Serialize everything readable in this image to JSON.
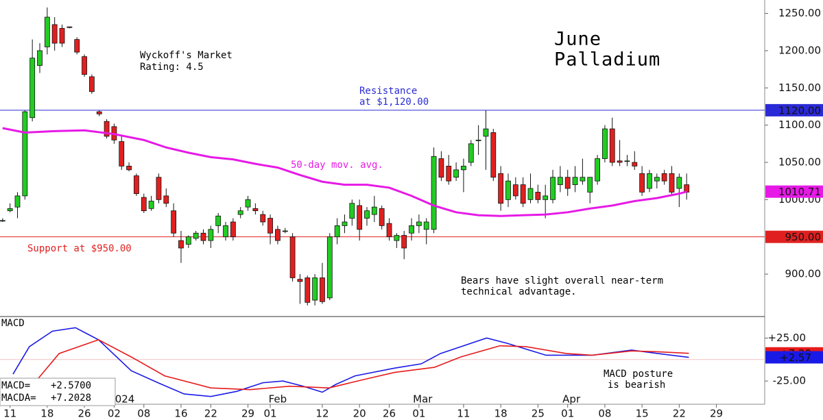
{
  "chart_data": {
    "type": "candlestick",
    "title": [
      "June",
      "Palladium"
    ],
    "rating": [
      "Wyckoff's Market",
      "Rating: 4.5"
    ],
    "resistance_note": [
      "Resistance",
      "at $1,120.00"
    ],
    "support_note": "Support at $950.00",
    "ma_note": "50-day mov. avg.",
    "outlook_note": [
      "Bears have slight overall near-term",
      "technical advantage."
    ],
    "macd_title": "MACD",
    "macd_note": [
      "MACD posture",
      "is bearish"
    ],
    "up_color": "#22cc22",
    "down_color": "#e02020",
    "ohlc": [
      [
        972,
        975,
        970,
        972
      ],
      [
        985,
        995,
        983,
        988
      ],
      [
        990,
        1010,
        975,
        1005
      ],
      [
        1005,
        1120,
        1000,
        1118
      ],
      [
        1110,
        1215,
        1105,
        1190
      ],
      [
        1180,
        1210,
        1170,
        1200
      ],
      [
        1205,
        1258,
        1195,
        1245
      ],
      [
        1235,
        1245,
        1200,
        1210
      ],
      [
        1230,
        1235,
        1205,
        1210
      ],
      [
        1232,
        1232,
        1230,
        1231
      ],
      [
        1215,
        1218,
        1195,
        1198
      ],
      [
        1192,
        1195,
        1165,
        1168
      ],
      [
        1165,
        1168,
        1142,
        1145
      ],
      [
        1118,
        1120,
        1112,
        1115
      ],
      [
        1105,
        1108,
        1082,
        1085
      ],
      [
        1098,
        1102,
        1075,
        1080
      ],
      [
        1078,
        1085,
        1040,
        1045
      ],
      [
        1045,
        1050,
        1038,
        1040
      ],
      [
        1032,
        1035,
        1005,
        1008
      ],
      [
        1003,
        1008,
        982,
        985
      ],
      [
        988,
        1005,
        985,
        998
      ],
      [
        1030,
        1035,
        995,
        1000
      ],
      [
        1005,
        1015,
        990,
        995
      ],
      [
        985,
        995,
        950,
        955
      ],
      [
        945,
        958,
        915,
        935
      ],
      [
        940,
        952,
        935,
        950
      ],
      [
        948,
        958,
        945,
        955
      ],
      [
        955,
        960,
        940,
        945
      ],
      [
        945,
        965,
        935,
        960
      ],
      [
        965,
        982,
        955,
        978
      ],
      [
        950,
        970,
        945,
        965
      ],
      [
        970,
        975,
        945,
        950
      ],
      [
        980,
        990,
        975,
        985
      ],
      [
        990,
        1005,
        985,
        1000
      ],
      [
        988,
        995,
        980,
        985
      ],
      [
        980,
        985,
        965,
        970
      ],
      [
        975,
        980,
        940,
        955
      ],
      [
        960,
        965,
        940,
        945
      ],
      [
        958,
        962,
        955,
        958
      ],
      [
        950,
        955,
        890,
        895
      ],
      [
        893,
        900,
        860,
        890
      ],
      [
        895,
        898,
        858,
        862
      ],
      [
        865,
        900,
        858,
        895
      ],
      [
        895,
        915,
        860,
        863
      ],
      [
        868,
        955,
        865,
        950
      ],
      [
        950,
        975,
        940,
        965
      ],
      [
        965,
        980,
        955,
        970
      ],
      [
        975,
        1000,
        965,
        995
      ],
      [
        992,
        1000,
        945,
        960
      ],
      [
        975,
        990,
        965,
        985
      ],
      [
        980,
        1005,
        970,
        990
      ],
      [
        988,
        992,
        960,
        965
      ],
      [
        968,
        975,
        945,
        950
      ],
      [
        945,
        955,
        935,
        952
      ],
      [
        952,
        958,
        920,
        935
      ],
      [
        955,
        975,
        945,
        965
      ],
      [
        965,
        980,
        955,
        970
      ],
      [
        960,
        975,
        940,
        970
      ],
      [
        960,
        1070,
        955,
        1058
      ],
      [
        1055,
        1065,
        1025,
        1030
      ],
      [
        1045,
        1060,
        1020,
        1025
      ],
      [
        1030,
        1050,
        1025,
        1040
      ],
      [
        1040,
        1055,
        1010,
        1045
      ],
      [
        1050,
        1080,
        1045,
        1075
      ],
      [
        1080,
        1100,
        1060,
        1080
      ],
      [
        1085,
        1120,
        1040,
        1095
      ],
      [
        1090,
        1095,
        1025,
        1030
      ],
      [
        1035,
        1045,
        985,
        995
      ],
      [
        1000,
        1035,
        990,
        1025
      ],
      [
        1020,
        1030,
        1000,
        1005
      ],
      [
        1020,
        1030,
        990,
        995
      ],
      [
        1000,
        1035,
        995,
        1015
      ],
      [
        1010,
        1020,
        995,
        1000
      ],
      [
        1000,
        1020,
        975,
        1005
      ],
      [
        1000,
        1040,
        995,
        1030
      ],
      [
        1020,
        1045,
        1010,
        1030
      ],
      [
        1030,
        1040,
        1005,
        1015
      ],
      [
        1020,
        1045,
        1010,
        1030
      ],
      [
        1025,
        1055,
        1020,
        1030
      ],
      [
        1010,
        1030,
        995,
        1030
      ],
      [
        1025,
        1060,
        1020,
        1055
      ],
      [
        1055,
        1100,
        1050,
        1095
      ],
      [
        1095,
        1110,
        1045,
        1050
      ],
      [
        1052,
        1080,
        1045,
        1050
      ],
      [
        1052,
        1060,
        1045,
        1052
      ],
      [
        1050,
        1065,
        1040,
        1045
      ],
      [
        1035,
        1045,
        1005,
        1010
      ],
      [
        1015,
        1040,
        1010,
        1035
      ],
      [
        1025,
        1035,
        1015,
        1030
      ],
      [
        1035,
        1040,
        1020,
        1025
      ],
      [
        1035,
        1045,
        1005,
        1010
      ],
      [
        1015,
        1035,
        990,
        1030
      ],
      [
        1020,
        1035,
        1000,
        1010
      ]
    ],
    "ma": {
      "color": "#e619e6",
      "x": [
        0,
        3,
        7,
        11,
        15,
        19,
        22,
        25,
        28,
        31,
        34,
        37,
        40,
        43,
        46,
        49,
        52,
        55,
        58,
        61,
        64,
        67,
        70,
        73,
        76,
        79,
        82,
        85,
        88,
        91,
        92
      ],
      "values": [
        1096,
        1090,
        1092,
        1093,
        1088,
        1080,
        1070,
        1063,
        1057,
        1054,
        1048,
        1043,
        1033,
        1024,
        1020,
        1020,
        1016,
        1005,
        992,
        983,
        979,
        978,
        979,
        980,
        983,
        988,
        992,
        998,
        1002,
        1008,
        1010.71
      ],
      "end_label": "1010.71"
    },
    "levels": [
      {
        "value": 1120,
        "label": "1120.00",
        "color": "#2a2ad6"
      },
      {
        "value": 950,
        "label": "950.00",
        "color": "#e02020"
      }
    ],
    "ylim": [
      843,
      1268
    ],
    "yticks": [
      {
        "value": 900,
        "label": "900.00"
      },
      {
        "value": 1000,
        "label": "1000.00"
      },
      {
        "value": 1050,
        "label": "1050.00"
      },
      {
        "value": 1100,
        "label": "1100.00"
      },
      {
        "value": 1150,
        "label": "1150.00"
      },
      {
        "value": 1200,
        "label": "1200.00"
      },
      {
        "value": 1250,
        "label": "1250.00"
      }
    ],
    "xlim": [
      -0.35,
      102.5
    ],
    "xticks": [
      {
        "value": 1,
        "label": "11"
      },
      {
        "value": 6,
        "label": "18"
      },
      {
        "value": 11,
        "label": "26"
      },
      {
        "value": 15,
        "label": "02"
      },
      {
        "value": 19,
        "label": "08"
      },
      {
        "value": 24,
        "label": "16"
      },
      {
        "value": 28,
        "label": "22"
      },
      {
        "value": 33,
        "label": "29"
      },
      {
        "value": 36,
        "label": "01"
      },
      {
        "value": 43,
        "label": "12"
      },
      {
        "value": 48,
        "label": "20"
      },
      {
        "value": 52,
        "label": "26"
      },
      {
        "value": 56,
        "label": "01"
      },
      {
        "value": 62,
        "label": "11"
      },
      {
        "value": 67,
        "label": "18"
      },
      {
        "value": 72,
        "label": "25"
      },
      {
        "value": 76,
        "label": "01"
      },
      {
        "value": 81,
        "label": "08"
      },
      {
        "value": 86,
        "label": "15"
      },
      {
        "value": 91,
        "label": "22"
      },
      {
        "value": 96,
        "label": "29"
      }
    ],
    "month_ticks": [
      {
        "value": 16,
        "label": "2024"
      },
      {
        "value": 37,
        "label": "Feb"
      },
      {
        "value": 56.5,
        "label": "Mar"
      },
      {
        "value": 76.5,
        "label": "Apr"
      }
    ],
    "macd": {
      "ylim": [
        -52,
        50
      ],
      "yticks": [
        {
          "value": 25,
          "label": "+25.00"
        },
        {
          "value": -25,
          "label": "-25.00"
        }
      ],
      "series": [
        {
          "name": "MACD=",
          "color": "#1a1ae6",
          "readout": "+2.5700",
          "end_label": "+2.57",
          "x": [
            1.4,
            3.6,
            6.7,
            9.8,
            12.9,
            17.3,
            20.9,
            24.4,
            28.0,
            31.5,
            35.0,
            37.7,
            40.4,
            43.0,
            44.8,
            47.4,
            52.7,
            56.3,
            58.9,
            65.1,
            67.8,
            73.1,
            79.3,
            84.6,
            88.1,
            92.3
          ],
          "values": [
            -17,
            15,
            33,
            37,
            23,
            -13,
            -27,
            -40,
            -43,
            -37,
            -27,
            -25,
            -31,
            -38,
            -29,
            -19,
            -10,
            -5,
            7,
            25,
            19,
            5,
            5,
            11,
            7,
            2.57
          ]
        },
        {
          "name": "MACDA=",
          "color": "#e61a1a",
          "readout": "+7.2028",
          "end_label": "+7.20",
          "x": [
            4.5,
            7.6,
            12.9,
            17.3,
            21.8,
            28.0,
            33.3,
            38.6,
            43.9,
            49.2,
            52.7,
            58.1,
            61.6,
            66.9,
            70.4,
            75.8,
            79.3,
            84.6,
            88.1,
            92.3
          ],
          "values": [
            -25,
            7,
            23,
            3,
            -19,
            -33,
            -35,
            -31,
            -33,
            -22,
            -15,
            -9,
            3,
            16,
            15,
            7,
            5,
            10,
            9,
            7.2028
          ]
        }
      ]
    }
  }
}
